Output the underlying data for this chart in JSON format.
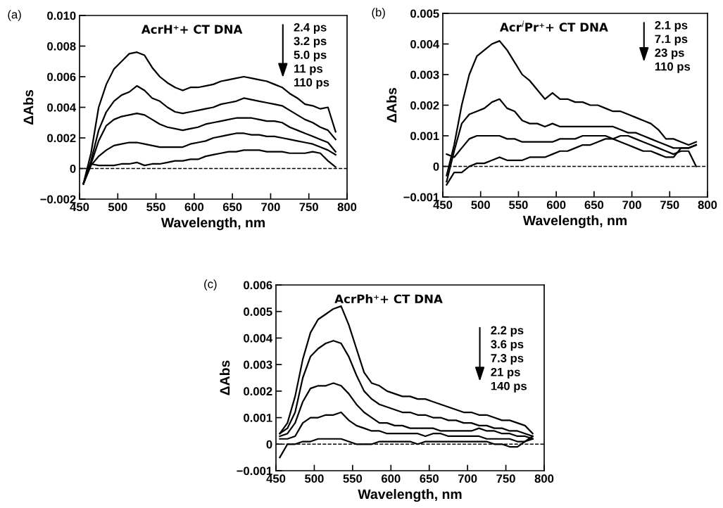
{
  "chart_data": [
    {
      "type": "line",
      "title": "AcrH⁺+ CT DNA",
      "xlabel": "Wavelength, nm",
      "ylabel": "ΔAbs",
      "annotations": [
        "(a)",
        "2.4 ps",
        "3.2 ps",
        "5.0 ps",
        "11 ps",
        "110 ps"
      ],
      "x": [
        455,
        465,
        475,
        485,
        495,
        505,
        515,
        525,
        535,
        545,
        555,
        565,
        575,
        585,
        595,
        605,
        615,
        625,
        635,
        645,
        655,
        665,
        675,
        685,
        695,
        705,
        715,
        725,
        735,
        745,
        755,
        765,
        775,
        785
      ],
      "xlim": [
        450,
        800
      ],
      "xticks": [
        450,
        500,
        550,
        600,
        650,
        700,
        750,
        800
      ],
      "ylim": [
        -0.002,
        0.01
      ],
      "yticks": [
        {
          "value": -0.002,
          "label": "−0.002"
        },
        0,
        0.002,
        0.004,
        0.006,
        0.008,
        {
          "value": 0.01,
          "label": "0.010"
        }
      ],
      "ref_lines": [
        {
          "axis": "y",
          "value": 0,
          "color": "#000000",
          "line_style": "dashed"
        }
      ],
      "line_style": "solid",
      "grid": false,
      "legend": false,
      "series": [
        {
          "color": "#000000",
          "values": [
            -0.001,
            0.001,
            0.004,
            0.0055,
            0.0065,
            0.007,
            0.0075,
            0.0076,
            0.0074,
            0.0066,
            0.006,
            0.0056,
            0.0053,
            0.0051,
            0.0053,
            0.0053,
            0.0054,
            0.0055,
            0.0057,
            0.0058,
            0.0059,
            0.006,
            0.0059,
            0.0058,
            0.0057,
            0.0055,
            0.0053,
            0.0049,
            0.0046,
            0.0042,
            0.0041,
            0.0039,
            0.004,
            0.0024
          ]
        },
        {
          "color": "#000000",
          "values": [
            -0.001,
            0.0005,
            0.0025,
            0.0037,
            0.0044,
            0.0048,
            0.005,
            0.0054,
            0.0051,
            0.0046,
            0.0044,
            0.004,
            0.0037,
            0.0036,
            0.0037,
            0.0038,
            0.0039,
            0.004,
            0.0042,
            0.0043,
            0.0044,
            0.0046,
            0.0045,
            0.0044,
            0.0043,
            0.0042,
            0.0041,
            0.0038,
            0.0035,
            0.0032,
            0.003,
            0.0027,
            0.0025,
            0.0019
          ]
        },
        {
          "color": "#000000",
          "values": [
            -0.001,
            0.0003,
            0.0018,
            0.0028,
            0.0032,
            0.0034,
            0.0035,
            0.0036,
            0.0035,
            0.0032,
            0.0029,
            0.0027,
            0.0026,
            0.0025,
            0.0026,
            0.0027,
            0.0029,
            0.003,
            0.0031,
            0.0032,
            0.0033,
            0.0033,
            0.0033,
            0.0032,
            0.0031,
            0.0031,
            0.003,
            0.0027,
            0.0025,
            0.0023,
            0.0021,
            0.0019,
            0.0017,
            0.0011
          ]
        },
        {
          "color": "#000000",
          "values": [
            -0.001,
            0.0002,
            0.0008,
            0.0012,
            0.0015,
            0.0016,
            0.0017,
            0.0017,
            0.0016,
            0.0015,
            0.0014,
            0.0014,
            0.0014,
            0.0014,
            0.0016,
            0.0017,
            0.0018,
            0.002,
            0.0021,
            0.0022,
            0.0023,
            0.0023,
            0.0022,
            0.0022,
            0.0021,
            0.0021,
            0.002,
            0.0019,
            0.0018,
            0.0017,
            0.0016,
            0.0014,
            0.0012,
            0.0009
          ]
        },
        {
          "color": "#000000",
          "values": [
            -0.001,
            0.0003,
            0.0002,
            0.0002,
            0.0002,
            0.0003,
            0.0003,
            0.0004,
            0.0002,
            0.0003,
            0.0003,
            0.0004,
            0.0005,
            0.0005,
            0.0006,
            0.0006,
            0.0008,
            0.0009,
            0.001,
            0.0011,
            0.0011,
            0.0012,
            0.0012,
            0.0012,
            0.0011,
            0.0011,
            0.0011,
            0.001,
            0.001,
            0.001,
            0.0011,
            0.001,
            0.0005,
            0.0001
          ]
        }
      ]
    },
    {
      "type": "line",
      "title": "Acr$^{i}$Pr⁺+ CT DNA",
      "xlabel": "Wavelength, nm",
      "ylabel": "ΔAbs",
      "annotations": [
        "(b)",
        "2.1 ps",
        "7.1 ps",
        "23 ps",
        "110 ps"
      ],
      "x": [
        455,
        465,
        475,
        485,
        495,
        505,
        515,
        525,
        535,
        545,
        555,
        565,
        575,
        585,
        595,
        605,
        615,
        625,
        635,
        645,
        655,
        665,
        675,
        685,
        695,
        705,
        715,
        725,
        735,
        745,
        755,
        765,
        775,
        785
      ],
      "xlim": [
        450,
        800
      ],
      "xticks": [
        450,
        500,
        550,
        600,
        650,
        700,
        750,
        800
      ],
      "ylim": [
        -0.001,
        0.005
      ],
      "yticks": [
        {
          "value": -0.001,
          "label": "−0.001"
        },
        0,
        0.001,
        0.002,
        0.003,
        0.004,
        0.005
      ],
      "ref_lines": [
        {
          "axis": "y",
          "value": 0,
          "color": "#000000",
          "line_style": "dashed"
        }
      ],
      "line_style": "solid",
      "grid": false,
      "legend": false,
      "series": [
        {
          "color": "#000000",
          "values": [
            -0.0003,
            0.0007,
            0.002,
            0.003,
            0.0036,
            0.0038,
            0.004,
            0.0041,
            0.0038,
            0.0034,
            0.003,
            0.0028,
            0.0025,
            0.0022,
            0.0024,
            0.0022,
            0.0022,
            0.0021,
            0.0021,
            0.002,
            0.002,
            0.0019,
            0.0018,
            0.0018,
            0.0017,
            0.0016,
            0.0015,
            0.0014,
            0.0012,
            0.0009,
            0.0009,
            0.0008,
            0.0007,
            0.0008
          ]
        },
        {
          "color": "#000000",
          "values": [
            -0.0005,
            0.0005,
            0.0014,
            0.0017,
            0.0018,
            0.0019,
            0.0021,
            0.0022,
            0.0019,
            0.0018,
            0.0015,
            0.0014,
            0.0014,
            0.0013,
            0.0014,
            0.0013,
            0.0013,
            0.0013,
            0.0013,
            0.0013,
            0.0013,
            0.0013,
            0.0013,
            0.0012,
            0.0011,
            0.0011,
            0.001,
            0.0009,
            0.0008,
            0.0007,
            0.0006,
            0.0006,
            0.0006,
            0.0007
          ]
        },
        {
          "color": "#000000",
          "values": [
            0.0004,
            0.0003,
            0.0006,
            0.0009,
            0.001,
            0.001,
            0.001,
            0.001,
            0.0009,
            0.0009,
            0.0008,
            0.0008,
            0.0008,
            0.0008,
            0.0008,
            0.0009,
            0.0009,
            0.0009,
            0.001,
            0.001,
            0.001,
            0.001,
            0.0009,
            0.0008,
            0.0007,
            0.0006,
            0.0005,
            0.0005,
            0.0004,
            0.0003,
            0.0003,
            0.0006,
            0.0006,
            0.0007
          ]
        },
        {
          "color": "#000000",
          "values": [
            -0.0006,
            -0.0002,
            -0.0002,
            0.0,
            0.0001,
            0.0001,
            0.0002,
            0.0003,
            0.0002,
            0.0002,
            0.0002,
            0.0003,
            0.0003,
            0.0003,
            0.0004,
            0.0005,
            0.0005,
            0.0006,
            0.0007,
            0.0007,
            0.0008,
            0.0009,
            0.0009,
            0.001,
            0.001,
            0.0009,
            0.0008,
            0.0007,
            0.0006,
            0.0005,
            0.0004,
            0.0005,
            0.0005,
            0.0
          ]
        }
      ]
    },
    {
      "type": "line",
      "title": "AcrPh⁺+ CT DNA",
      "xlabel": "Wavelength, nm",
      "ylabel": "ΔAbs",
      "annotations": [
        "(c)",
        "2.2 ps",
        "3.6 ps",
        "7.3 ps",
        "21 ps",
        "140 ps"
      ],
      "x": [
        455,
        465,
        475,
        485,
        495,
        505,
        515,
        525,
        535,
        545,
        555,
        565,
        575,
        585,
        595,
        605,
        615,
        625,
        635,
        645,
        655,
        665,
        675,
        685,
        695,
        705,
        715,
        725,
        735,
        745,
        755,
        765,
        775,
        785
      ],
      "xlim": [
        450,
        800
      ],
      "xticks": [
        450,
        500,
        550,
        600,
        650,
        700,
        750,
        800
      ],
      "ylim": [
        -0.001,
        0.006
      ],
      "yticks": [
        {
          "value": -0.001,
          "label": "−0.001"
        },
        0,
        0.001,
        0.002,
        0.003,
        0.004,
        0.005,
        0.006
      ],
      "ref_lines": [
        {
          "axis": "y",
          "value": 0,
          "color": "#000000",
          "line_style": "dashed"
        }
      ],
      "line_style": "solid",
      "grid": false,
      "legend": false,
      "series": [
        {
          "color": "#000000",
          "values": [
            0.0004,
            0.0008,
            0.0018,
            0.0032,
            0.0042,
            0.0047,
            0.0049,
            0.0051,
            0.0052,
            0.0045,
            0.0036,
            0.0027,
            0.0023,
            0.0022,
            0.002,
            0.0019,
            0.0018,
            0.0018,
            0.0017,
            0.0017,
            0.0016,
            0.0015,
            0.0014,
            0.0013,
            0.0012,
            0.0012,
            0.0011,
            0.0011,
            0.001,
            0.0009,
            0.0009,
            0.0008,
            0.0007,
            0.0004
          ]
        },
        {
          "color": "#000000",
          "values": [
            0.0004,
            0.0006,
            0.0012,
            0.0025,
            0.0033,
            0.0036,
            0.0038,
            0.0039,
            0.0038,
            0.0033,
            0.0026,
            0.002,
            0.0017,
            0.0015,
            0.0014,
            0.0013,
            0.0012,
            0.0012,
            0.0011,
            0.0011,
            0.001,
            0.001,
            0.0009,
            0.0009,
            0.0008,
            0.0008,
            0.0007,
            0.0007,
            0.0006,
            0.0006,
            0.0005,
            0.0005,
            0.0004,
            0.0003
          ]
        },
        {
          "color": "#000000",
          "values": [
            0.0003,
            0.0004,
            0.0008,
            0.0016,
            0.0021,
            0.0022,
            0.0022,
            0.0023,
            0.0022,
            0.0019,
            0.0015,
            0.0012,
            0.001,
            0.0008,
            0.0008,
            0.0007,
            0.0007,
            0.0006,
            0.0006,
            0.0006,
            0.0006,
            0.0005,
            0.0005,
            0.0005,
            0.0005,
            0.0005,
            0.0006,
            0.0005,
            0.0005,
            0.0004,
            0.0004,
            0.0003,
            0.0003,
            0.0002
          ]
        },
        {
          "color": "#000000",
          "values": [
            0.0002,
            0.0002,
            0.0003,
            0.0008,
            0.001,
            0.001,
            0.0011,
            0.0011,
            0.0012,
            0.0009,
            0.0007,
            0.0006,
            0.0005,
            0.0005,
            0.0004,
            0.0004,
            0.0004,
            0.0004,
            0.0004,
            0.0003,
            0.0004,
            0.0004,
            0.0003,
            0.0003,
            0.0003,
            0.0003,
            0.0003,
            0.0002,
            0.0002,
            0.0002,
            0.0002,
            0.0001,
            0.0001,
            0.0003
          ]
        },
        {
          "color": "#000000",
          "values": [
            -0.0005,
            0.0,
            0.0,
            0.0001,
            0.0001,
            0.0002,
            0.0002,
            0.0002,
            0.0002,
            0.0001,
            0.0,
            0.0,
            0.0,
            0.0001,
            0.0001,
            0.0001,
            0.0001,
            0.0001,
            0.0,
            0.0001,
            0.0001,
            0.0001,
            0.0001,
            0.0001,
            0.0001,
            0.0001,
            0.0001,
            0.0001,
            0.0,
            0.0,
            -0.0001,
            -0.0001,
            0.0001,
            0.0002
          ]
        }
      ]
    }
  ]
}
